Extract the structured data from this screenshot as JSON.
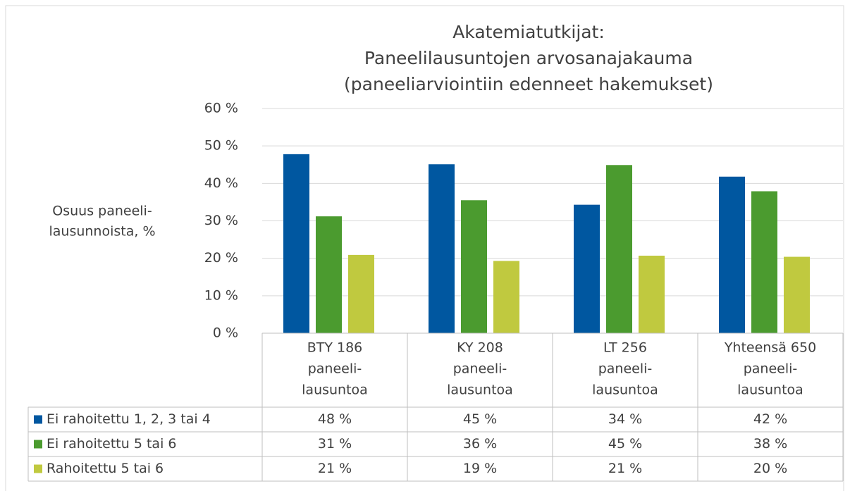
{
  "chart_data": {
    "type": "bar",
    "title": [
      "Akatemiatutkijat:",
      "Paneelilausuntojen arvosanajakauma",
      "(paneeliarviointiin edenneet hakemukset)"
    ],
    "y_label": [
      "Osuus paneeli-",
      "lausunnoista, %"
    ],
    "categories": [
      [
        "BTY 186",
        "paneeli-",
        "lausuntoa"
      ],
      [
        "KY 208",
        "paneeli-",
        "lausuntoa"
      ],
      [
        "LT 256",
        "paneeli-",
        "lausuntoa"
      ],
      [
        "Yhteensä 650",
        "paneeli-",
        "lausuntoa"
      ]
    ],
    "series": [
      {
        "name": "Ei rahoitettu 1, 2, 3 tai 4",
        "color": "#0057a0",
        "values": [
          47.8,
          45.1,
          34.3,
          41.8
        ],
        "value_labels": [
          "48 %",
          "45 %",
          "34 %",
          "42 %"
        ]
      },
      {
        "name": "Ei rahoitettu 5 tai 6",
        "color": "#4b9b2f",
        "values": [
          31.2,
          35.5,
          44.9,
          37.9
        ],
        "value_labels": [
          "31 %",
          "36 %",
          "45 %",
          "38 %"
        ]
      },
      {
        "name": "Rahoitettu 5 tai 6",
        "color": "#c0c93f",
        "values": [
          20.9,
          19.3,
          20.7,
          20.4
        ],
        "value_labels": [
          "21 %",
          "19 %",
          "21 %",
          "20 %"
        ]
      }
    ],
    "ylim": [
      0,
      60
    ],
    "yticks": [
      {
        "value": 0,
        "label": "0 %"
      },
      {
        "value": 10,
        "label": "10 %"
      },
      {
        "value": 20,
        "label": "20 %"
      },
      {
        "value": 30,
        "label": "30 %"
      },
      {
        "value": 40,
        "label": "40 %"
      },
      {
        "value": 50,
        "label": "50 %"
      },
      {
        "value": 60,
        "label": "60 %"
      }
    ],
    "grid": true,
    "data_table": true
  }
}
